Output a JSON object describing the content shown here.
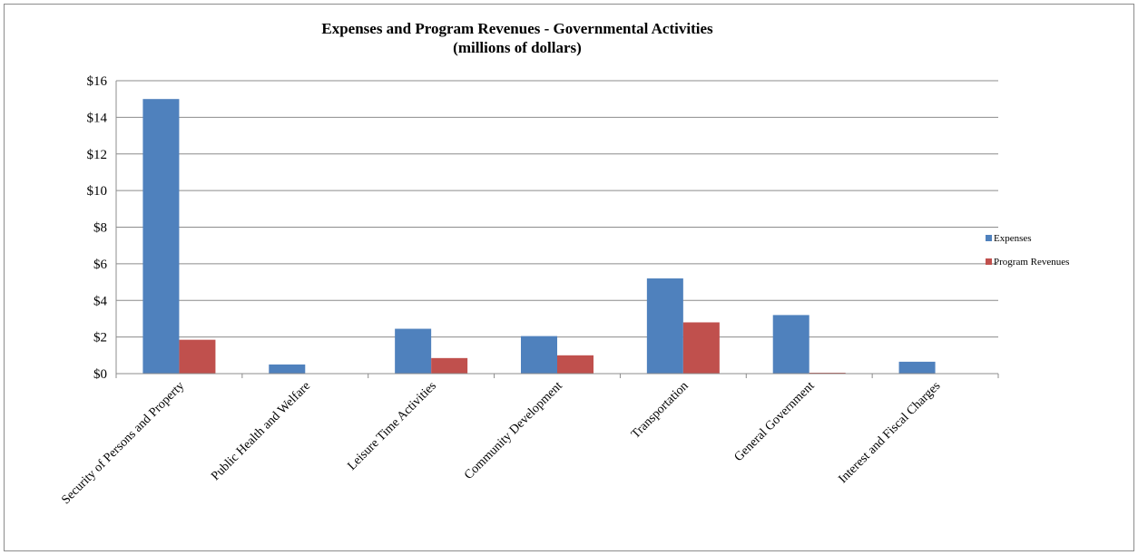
{
  "chart_data": {
    "type": "bar",
    "title": "Expenses and Program  Revenues - Governmental  Activities",
    "subtitle": "(millions  of dollars)",
    "xlabel": "",
    "ylabel": "",
    "ylim": [
      0,
      16
    ],
    "ytick_step": 2,
    "ytick_labels": [
      "$0",
      "$2",
      "$4",
      "$6",
      "$8",
      "$10",
      "$12",
      "$14",
      "$16"
    ],
    "grid": true,
    "legend_position": "right",
    "categories": [
      "Security of Persons and Property",
      "Public Health and Welfare",
      "Leisure Time Activities",
      "Community Development",
      "Transportation",
      "General Government",
      "Interest and Fiscal Charges"
    ],
    "series": [
      {
        "name": "Expenses",
        "color": "#4f81bd",
        "values": [
          15.0,
          0.5,
          2.45,
          2.05,
          5.2,
          3.2,
          0.65
        ]
      },
      {
        "name": "Program Revenues",
        "color": "#c0504d",
        "values": [
          1.85,
          0.0,
          0.85,
          1.0,
          2.8,
          0.05,
          0.0
        ]
      }
    ]
  }
}
